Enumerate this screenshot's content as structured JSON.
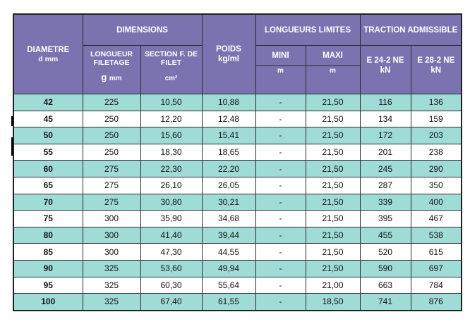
{
  "header": {
    "diametre": "DIAMETRE",
    "diametre_unit": "d mm",
    "dimensions": "DIMENSIONS",
    "longueur_filetage": "LONGUEUR FILETAGE",
    "longueur_filetage_unit_symbol": "g",
    "longueur_filetage_unit": "mm",
    "section_filet": "SECTION F. DE FILET",
    "section_filet_unit": "cm²",
    "poids": "POIDS",
    "poids_unit": "kg/ml",
    "longueurs_limites": "LONGUEURS LIMITES",
    "mini": "MINI",
    "mini_unit": "m",
    "maxi": "MAXI",
    "maxi_unit": "m",
    "traction": "TRACTION ADMISSIBLE",
    "e24": "E 24-2 NE",
    "e24_unit": "kN",
    "e28": "E 28-2 NE",
    "e28_unit": "kN"
  },
  "colors": {
    "header_bg": "#7b72b0",
    "row_teal": "#9fdcd6",
    "row_white": "#ffffff"
  },
  "rows": [
    [
      "42",
      "225",
      "10,50",
      "10,88",
      "-",
      "21,50",
      "116",
      "136"
    ],
    [
      "45",
      "250",
      "12,20",
      "12,48",
      "-",
      "21,50",
      "134",
      "159"
    ],
    [
      "50",
      "250",
      "15,60",
      "15,41",
      "-",
      "21,50",
      "172",
      "203"
    ],
    [
      "55",
      "250",
      "18,30",
      "18,65",
      "-",
      "21,50",
      "201",
      "238"
    ],
    [
      "60",
      "275",
      "22,30",
      "22,20",
      "-",
      "21,50",
      "245",
      "290"
    ],
    [
      "65",
      "275",
      "26,10",
      "26,05",
      "-",
      "21,50",
      "287",
      "350"
    ],
    [
      "70",
      "275",
      "30,80",
      "30,21",
      "-",
      "21,50",
      "339",
      "400"
    ],
    [
      "75",
      "300",
      "35,90",
      "34,68",
      "-",
      "21,50",
      "395",
      "467"
    ],
    [
      "80",
      "300",
      "41,40",
      "39,44",
      "-",
      "21,50",
      "455",
      "538"
    ],
    [
      "85",
      "300",
      "47,30",
      "44,55",
      "-",
      "21,50",
      "520",
      "615"
    ],
    [
      "90",
      "325",
      "53,60",
      "49,94",
      "-",
      "21,50",
      "590",
      "697"
    ],
    [
      "95",
      "325",
      "60,30",
      "55,64",
      "-",
      "21,00",
      "663",
      "784"
    ],
    [
      "100",
      "325",
      "67,40",
      "61,55",
      "-",
      "18,50",
      "741",
      "876"
    ]
  ]
}
